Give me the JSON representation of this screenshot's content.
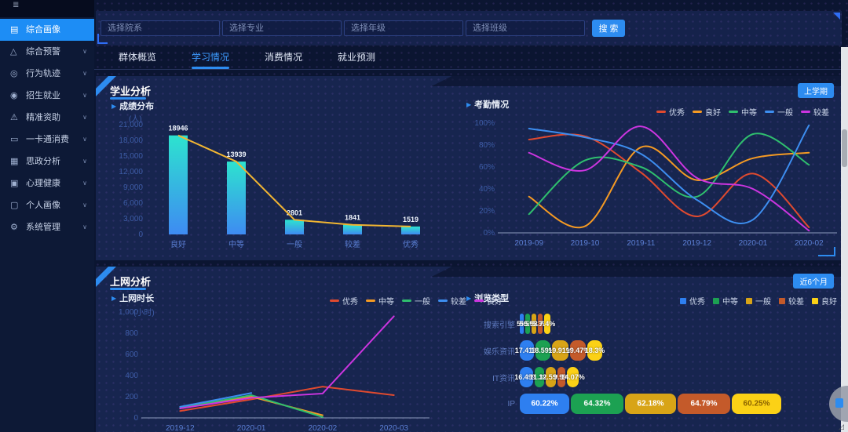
{
  "sidebar": {
    "items": [
      {
        "label": "综合画像",
        "icon": "portrait-icon",
        "active": true,
        "expandable": false
      },
      {
        "label": "综合预警",
        "icon": "warning-icon",
        "active": false,
        "expandable": true
      },
      {
        "label": "行为轨迹",
        "icon": "track-icon",
        "active": false,
        "expandable": true
      },
      {
        "label": "招生就业",
        "icon": "jobs-icon",
        "active": false,
        "expandable": true
      },
      {
        "label": "精准资助",
        "icon": "aid-icon",
        "active": false,
        "expandable": true
      },
      {
        "label": "一卡通消费",
        "icon": "card-icon",
        "active": false,
        "expandable": true
      },
      {
        "label": "思政分析",
        "icon": "analysis-icon",
        "active": false,
        "expandable": true
      },
      {
        "label": "心理健康",
        "icon": "health-icon",
        "active": false,
        "expandable": true
      },
      {
        "label": "个人画像",
        "icon": "person-icon",
        "active": false,
        "expandable": true
      },
      {
        "label": "系统管理",
        "icon": "gear-icon",
        "active": false,
        "expandable": true
      }
    ]
  },
  "filters": {
    "selects": [
      "选择院系",
      "选择专业",
      "选择年级",
      "选择班级"
    ],
    "search_label": "搜 索"
  },
  "tabs": [
    {
      "label": "群体概览",
      "active": false
    },
    {
      "label": "学习情况",
      "active": true
    },
    {
      "label": "消费情况",
      "active": false
    },
    {
      "label": "就业预测",
      "active": false
    }
  ],
  "panels": [
    {
      "title": "学业分析",
      "action": "上学期"
    },
    {
      "title": "上网分析",
      "action": "近6个月"
    }
  ],
  "colors": {
    "accent_blue": "#2d8cf0",
    "active_menu": "#1d8df5",
    "bar_gradient_top": "#2de3cf",
    "bar_gradient_bottom": "#3e8bf2",
    "bar_line": "#f2b632"
  },
  "chart_data": [
    {
      "id": "score-dist",
      "type": "bar",
      "title": "成绩分布",
      "unit": "(人)",
      "categories": [
        "良好",
        "中等",
        "一般",
        "较差",
        "优秀"
      ],
      "values": [
        18946,
        13939,
        2801,
        1841,
        1519
      ],
      "value_labels": [
        "18946",
        "13939",
        "2801",
        "1841",
        "1519"
      ],
      "ylim": [
        0,
        21000
      ],
      "yticks": [
        "0",
        "3,000",
        "6,000",
        "9,000",
        "12,000",
        "15,000",
        "18,000",
        "21,000"
      ],
      "overlay_line": true,
      "grid": false
    },
    {
      "id": "attendance",
      "type": "line",
      "title": "考勤情况",
      "categories": [
        "2019-09",
        "2019-10",
        "2019-11",
        "2019-12",
        "2020-01",
        "2020-02"
      ],
      "series": [
        {
          "name": "优秀",
          "color": "#e04a2f",
          "values": [
            85,
            88,
            55,
            15,
            54,
            5
          ]
        },
        {
          "name": "良好",
          "color": "#f59a23",
          "values": [
            33,
            6,
            78,
            48,
            68,
            73
          ]
        },
        {
          "name": "中等",
          "color": "#2fbf6e",
          "values": [
            17,
            66,
            60,
            33,
            90,
            62
          ]
        },
        {
          "name": "一般",
          "color": "#3d8ef0",
          "values": [
            95,
            87,
            72,
            30,
            12,
            98
          ]
        },
        {
          "name": "较差",
          "color": "#cc35e0",
          "values": [
            73,
            57,
            97,
            50,
            40,
            2
          ]
        }
      ],
      "ylim": [
        0,
        100
      ],
      "yticks": [
        "0%",
        "20%",
        "40%",
        "60%",
        "80%",
        "100%"
      ],
      "smooth": true,
      "legend_position": "top-right",
      "grid": false
    },
    {
      "id": "online-time",
      "type": "line",
      "title": "上网时长",
      "unit": "(小时)",
      "categories": [
        "2019-12",
        "2020-01",
        "2020-02",
        "2020-03"
      ],
      "series": [
        {
          "name": "优秀",
          "color": "#e04a2f",
          "values": [
            65,
            175,
            295,
            215
          ]
        },
        {
          "name": "中等",
          "color": "#f59a23",
          "values": [
            90,
            200,
            25,
            null
          ]
        },
        {
          "name": "一般",
          "color": "#2fbf6e",
          "values": [
            95,
            215,
            8,
            null
          ]
        },
        {
          "name": "较差",
          "color": "#3d8ef0",
          "values": [
            105,
            235,
            null,
            null
          ]
        },
        {
          "name": "良好",
          "color": "#cc35e0",
          "values": [
            90,
            190,
            230,
            960
          ]
        }
      ],
      "ylim": [
        0,
        1000
      ],
      "yticks": [
        "0",
        "200",
        "400",
        "600",
        "800",
        "1,000"
      ],
      "smooth": false,
      "legend_position": "top-center",
      "grid": false
    },
    {
      "id": "browse-type",
      "type": "hbar-grouped",
      "title": "浏览类型",
      "series_names": [
        "优秀",
        "中等",
        "一般",
        "较差",
        "良好"
      ],
      "series_colors": [
        "#2e7ff0",
        "#1ca152",
        "#d8a417",
        "#c45a2a",
        "#fbd116"
      ],
      "rows": [
        {
          "label": "搜索引擎",
          "values": [
            5.0,
            5.5,
            5.58,
            5.3,
            7.4
          ],
          "labels": [
            "5%",
            "5.5%",
            "5.58%",
            "5.3%",
            "7.4%"
          ],
          "labels_inside": false
        },
        {
          "label": "娱乐资讯",
          "values": [
            17.41,
            18.59,
            19.91,
            19.47,
            18.3
          ],
          "labels": [
            "17.41%",
            "18.59%",
            "19.91%",
            "19.47%",
            "18.3%"
          ],
          "labels_inside": false
        },
        {
          "label": "IT资讯",
          "values": [
            16.49,
            11.3,
            12.59,
            9.9,
            14.07
          ],
          "labels": [
            "16.49%",
            "11.3%",
            "12.59%",
            "9.9%",
            "14.07%"
          ],
          "labels_inside": false
        },
        {
          "label": "IP",
          "values": [
            60.22,
            64.32,
            62.18,
            64.79,
            60.25
          ],
          "labels": [
            "60.22%",
            "64.32%",
            "62.18%",
            "64.79%",
            "60.25%"
          ],
          "labels_inside": true
        }
      ],
      "legend_position": "top-right"
    }
  ]
}
